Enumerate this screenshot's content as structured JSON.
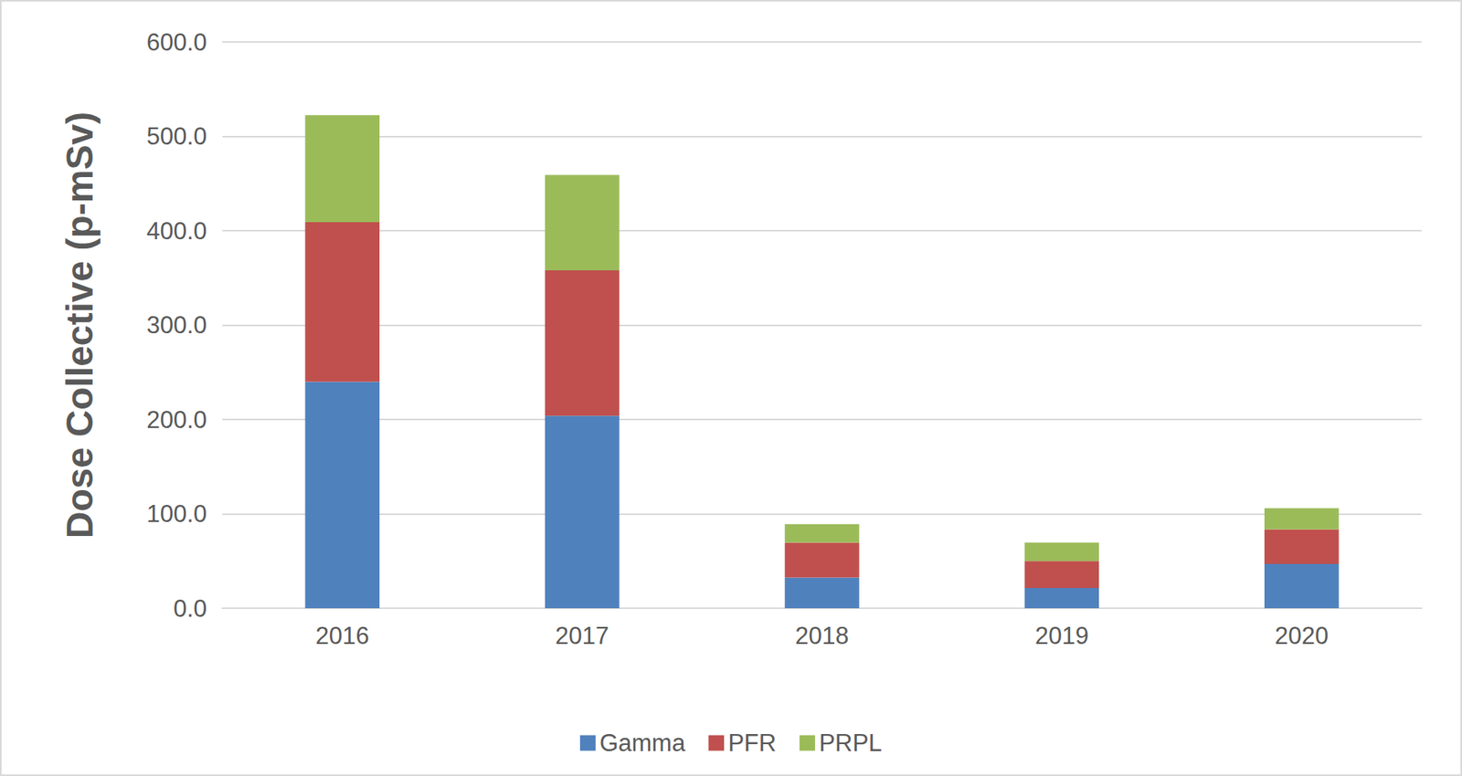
{
  "chart_data": {
    "type": "bar",
    "stacked": true,
    "y_label": "Dose Collective (p-mSv)",
    "categories": [
      "2016",
      "2017",
      "2018",
      "2019",
      "2020"
    ],
    "series": [
      {
        "name": "Gamma",
        "color": "#4f81bd",
        "values": [
          240,
          204,
          32.5,
          21.5,
          47
        ]
      },
      {
        "name": "PFR",
        "color": "#c0504d",
        "values": [
          169,
          154,
          37,
          28.5,
          36.5
        ]
      },
      {
        "name": "PRPL",
        "color": "#9bbb59",
        "values": [
          113.5,
          101,
          19.5,
          19.5,
          22.5
        ]
      }
    ],
    "ylim": [
      0,
      600
    ],
    "yticks": [
      {
        "value": 0,
        "label": "0.0"
      },
      {
        "value": 100,
        "label": "100.0"
      },
      {
        "value": 200,
        "label": "200.0"
      },
      {
        "value": 300,
        "label": "300.0"
      },
      {
        "value": 400,
        "label": "400.0"
      },
      {
        "value": 500,
        "label": "500.0"
      },
      {
        "value": 600,
        "label": "600.0"
      }
    ],
    "grid": true,
    "legend": "bottom",
    "data_labels": false
  }
}
